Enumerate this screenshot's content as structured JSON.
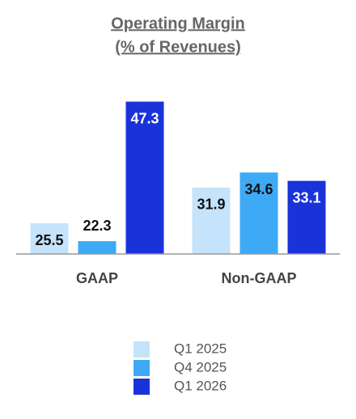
{
  "chart_data": {
    "type": "bar",
    "title": [
      "Operating Margin",
      "(% of Revenues)"
    ],
    "categories": [
      "GAAP",
      "Non-GAAP"
    ],
    "series": [
      {
        "name": "Q1 2025",
        "color": "#c5e3fa",
        "values": [
          25.5,
          31.9
        ]
      },
      {
        "name": "Q4 2025",
        "color": "#3eaaf5",
        "values": [
          22.3,
          34.6
        ]
      },
      {
        "name": "Q1 2026",
        "color": "#1a33d9",
        "values": [
          47.3,
          33.1
        ]
      }
    ],
    "ylim": [
      20,
      50
    ]
  }
}
